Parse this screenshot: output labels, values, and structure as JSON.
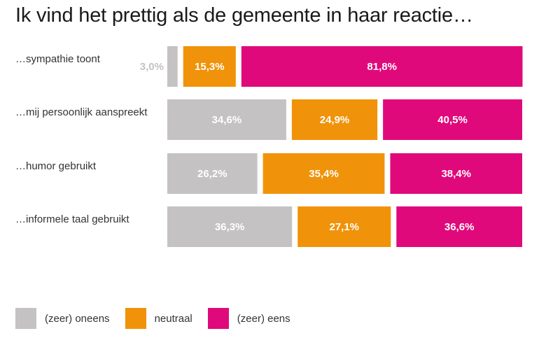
{
  "title": "Ik vind het prettig als de gemeente in haar reactie…",
  "colors": {
    "oneens": "#c4c2c3",
    "neutraal": "#f0930a",
    "eens": "#e0097b"
  },
  "chart_data": {
    "type": "bar",
    "orientation": "horizontal-stacked-100",
    "categories": [
      "…sympathie toont",
      "…mij persoonlijk aanspreekt",
      "…humor gebruikt",
      "…informele taal gebruikt"
    ],
    "series": [
      {
        "name": "(zeer) oneens",
        "values": [
          3.0,
          34.6,
          26.2,
          36.3
        ],
        "labels": [
          "3,0%",
          "34,6%",
          "26,2%",
          "36,3%"
        ]
      },
      {
        "name": "neutraal",
        "values": [
          15.3,
          24.9,
          35.4,
          27.1
        ],
        "labels": [
          "15,3%",
          "24,9%",
          "35,4%",
          "27,1%"
        ]
      },
      {
        "name": "(zeer) eens",
        "values": [
          81.8,
          40.5,
          38.4,
          36.6
        ],
        "labels": [
          "81,8%",
          "40,5%",
          "38,4%",
          "36,6%"
        ]
      }
    ],
    "legend": {
      "placement": "bottom-left"
    }
  }
}
